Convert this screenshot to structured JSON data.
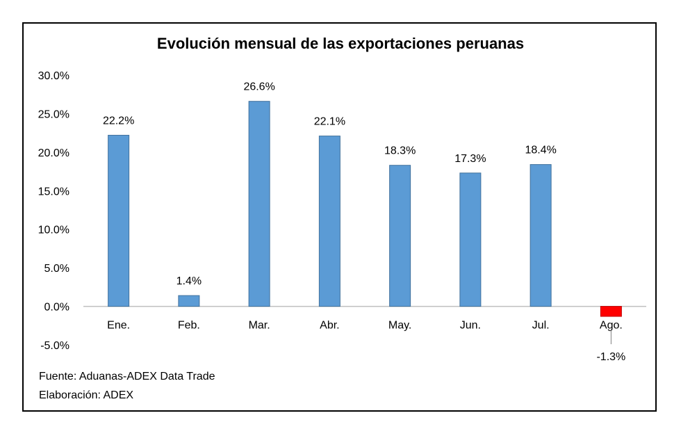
{
  "chart_data": {
    "type": "bar",
    "title": "Evolución mensual de las exportaciones peruanas",
    "categories": [
      "Ene.",
      "Feb.",
      "Mar.",
      "Abr.",
      "May.",
      "Jun.",
      "Jul.",
      "Ago."
    ],
    "values": [
      22.2,
      1.4,
      26.6,
      22.1,
      18.3,
      17.3,
      18.4,
      -1.3
    ],
    "data_labels": [
      "22.2%",
      "1.4%",
      "26.6%",
      "22.1%",
      "18.3%",
      "17.3%",
      "18.4%",
      "-1.3%"
    ],
    "ylim": [
      -5,
      30
    ],
    "yticks": [
      30,
      25,
      20,
      15,
      10,
      5,
      0,
      -5
    ],
    "ytick_labels": [
      "30.0%",
      "25.0%",
      "20.0%",
      "15.0%",
      "10.0%",
      "5.0%",
      "0.0%",
      "-5.0%"
    ],
    "xlabel": "",
    "ylabel": "",
    "grid": false,
    "legend": "none",
    "colors": {
      "positive": "#5b9bd5",
      "negative": "#ff0000",
      "axis": "#bfbfbf"
    }
  },
  "source": {
    "fuente": "Fuente: Aduanas-ADEX Data Trade",
    "elaboracion": "Elaboración: ADEX"
  }
}
